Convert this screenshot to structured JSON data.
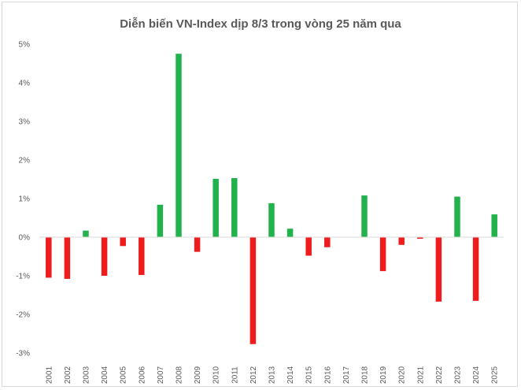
{
  "chart_data": {
    "type": "bar",
    "title": "Diễn biến VN-Index dịp 8/3 trong vòng 25 năm qua",
    "xlabel": "",
    "ylabel": "",
    "ylim": [
      -3,
      5
    ],
    "yticks": [
      "-3%",
      "-2%",
      "-1%",
      "0%",
      "1%",
      "2%",
      "3%",
      "4%",
      "5%"
    ],
    "ytick_values": [
      -3,
      -2,
      -1,
      0,
      1,
      2,
      3,
      4,
      5
    ],
    "categories": [
      "2001",
      "2002",
      "2003",
      "2004",
      "2005",
      "2006",
      "2007",
      "2008",
      "2009",
      "2010",
      "2011",
      "2012",
      "2013",
      "2014",
      "2015",
      "2016",
      "2017",
      "2018",
      "2019",
      "2020",
      "2021",
      "2022",
      "2023",
      "2024",
      "2025"
    ],
    "values": [
      -1.05,
      -1.08,
      0.17,
      -1.0,
      -0.23,
      -0.98,
      0.84,
      4.75,
      -0.38,
      1.51,
      1.53,
      -2.77,
      0.88,
      0.22,
      -0.48,
      -0.26,
      0.0,
      1.08,
      -0.88,
      -0.2,
      -0.04,
      -1.67,
      1.05,
      -1.65,
      0.59
    ],
    "colors": {
      "positive": "#22b24c",
      "negative": "#ee1c1c",
      "zero_line": "#d9d9d9"
    }
  }
}
